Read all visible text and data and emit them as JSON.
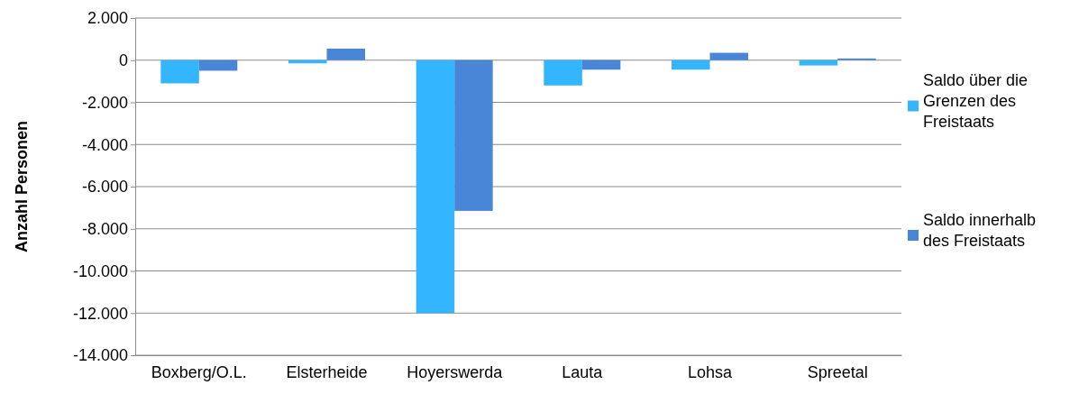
{
  "chart_data": {
    "type": "bar",
    "ylabel": "Anzahl Personen",
    "categories": [
      "Boxberg/O.L.",
      "Elsterheide",
      "Hoyerswerda",
      "Lauta",
      "Lohsa",
      "Spreetal"
    ],
    "series": [
      {
        "name": "Saldo über die Grenzen des Freistaats",
        "color": "#33b5ff",
        "values": [
          -1100,
          -150,
          -12000,
          -1200,
          -450,
          -250
        ]
      },
      {
        "name": "Saldo innerhalb des Freistaats",
        "color": "#4a86d8",
        "values": [
          -500,
          550,
          -7150,
          -450,
          350,
          80
        ]
      }
    ],
    "ylim": [
      -14000,
      2000
    ],
    "yticks": [
      {
        "value": -14000,
        "label": "-14.000"
      },
      {
        "value": -12000,
        "label": "-12.000"
      },
      {
        "value": -10000,
        "label": "-10.000"
      },
      {
        "value": -8000,
        "label": "-8.000"
      },
      {
        "value": -6000,
        "label": "-6.000"
      },
      {
        "value": -4000,
        "label": "-4.000"
      },
      {
        "value": -2000,
        "label": "-2.000"
      },
      {
        "value": 0,
        "label": "0"
      },
      {
        "value": 2000,
        "label": "2.000"
      }
    ],
    "grid": "y",
    "legend": "right"
  }
}
